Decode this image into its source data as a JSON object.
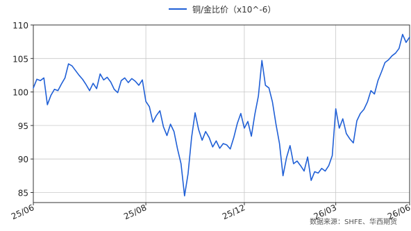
{
  "chart_data": {
    "type": "line",
    "title": "",
    "xlabel": "",
    "ylabel": "",
    "ylim": [
      83.5,
      110
    ],
    "yticks": [
      85,
      90,
      95,
      100,
      105,
      110
    ],
    "xticks": [
      "25/06",
      "25/08",
      "25/12",
      "26/03",
      "26/06"
    ],
    "grid": true,
    "legend_position": "top-center",
    "colors": {
      "line": "#1f5fd6",
      "grid": "#c8c8c8",
      "axis": "#333333"
    },
    "series": [
      {
        "name": "铜/金比价（x10^-6）",
        "points": [
          [
            0,
            100.6
          ],
          [
            1,
            101.9
          ],
          [
            2,
            101.7
          ],
          [
            3,
            102.1
          ],
          [
            4,
            98.1
          ],
          [
            5,
            99.5
          ],
          [
            6,
            100.4
          ],
          [
            7,
            100.2
          ],
          [
            8,
            101.2
          ],
          [
            9,
            102.1
          ],
          [
            10,
            104.2
          ],
          [
            11,
            103.9
          ],
          [
            12,
            103.2
          ],
          [
            13,
            102.5
          ],
          [
            14,
            101.9
          ],
          [
            15,
            101.1
          ],
          [
            16,
            100.2
          ],
          [
            17,
            101.3
          ],
          [
            18,
            100.5
          ],
          [
            19,
            102.7
          ],
          [
            20,
            101.8
          ],
          [
            21,
            102.2
          ],
          [
            22,
            101.5
          ],
          [
            23,
            100.4
          ],
          [
            24,
            99.9
          ],
          [
            25,
            101.7
          ],
          [
            26,
            102.1
          ],
          [
            27,
            101.4
          ],
          [
            28,
            102.0
          ],
          [
            29,
            101.6
          ],
          [
            30,
            101.0
          ],
          [
            31,
            101.8
          ],
          [
            32,
            98.6
          ],
          [
            33,
            97.8
          ],
          [
            34,
            95.5
          ],
          [
            35,
            96.5
          ],
          [
            36,
            97.2
          ],
          [
            37,
            94.8
          ],
          [
            38,
            93.5
          ],
          [
            39,
            95.2
          ],
          [
            40,
            94.1
          ],
          [
            41,
            91.5
          ],
          [
            42,
            89.3
          ],
          [
            43,
            84.5
          ],
          [
            44,
            87.8
          ],
          [
            45,
            93.2
          ],
          [
            46,
            96.9
          ],
          [
            47,
            94.4
          ],
          [
            48,
            92.8
          ],
          [
            49,
            94.1
          ],
          [
            50,
            93.2
          ],
          [
            51,
            91.8
          ],
          [
            52,
            92.7
          ],
          [
            53,
            91.6
          ],
          [
            54,
            92.3
          ],
          [
            55,
            92.1
          ],
          [
            56,
            91.5
          ],
          [
            57,
            93.2
          ],
          [
            58,
            95.3
          ],
          [
            59,
            96.8
          ],
          [
            60,
            94.6
          ],
          [
            61,
            95.6
          ],
          [
            62,
            93.4
          ],
          [
            63,
            96.7
          ],
          [
            64,
            99.4
          ],
          [
            65,
            104.7
          ],
          [
            66,
            101.0
          ],
          [
            67,
            100.6
          ],
          [
            68,
            98.5
          ],
          [
            69,
            95.2
          ],
          [
            70,
            92.3
          ],
          [
            71,
            87.5
          ],
          [
            72,
            90.2
          ],
          [
            73,
            92.0
          ],
          [
            74,
            89.3
          ],
          [
            75,
            89.7
          ],
          [
            76,
            89.0
          ],
          [
            77,
            88.2
          ],
          [
            78,
            90.3
          ],
          [
            79,
            86.8
          ],
          [
            80,
            88.1
          ],
          [
            81,
            87.9
          ],
          [
            82,
            88.6
          ],
          [
            83,
            88.2
          ],
          [
            84,
            89.0
          ],
          [
            85,
            90.5
          ],
          [
            86,
            97.5
          ],
          [
            87,
            94.6
          ],
          [
            88,
            96.0
          ],
          [
            89,
            93.8
          ],
          [
            90,
            93.0
          ],
          [
            91,
            92.4
          ],
          [
            92,
            95.7
          ],
          [
            93,
            96.8
          ],
          [
            94,
            97.4
          ],
          [
            95,
            98.5
          ],
          [
            96,
            100.2
          ],
          [
            97,
            99.7
          ],
          [
            98,
            101.7
          ],
          [
            99,
            103.0
          ],
          [
            100,
            104.4
          ],
          [
            101,
            104.8
          ],
          [
            102,
            105.4
          ],
          [
            103,
            105.8
          ],
          [
            104,
            106.5
          ],
          [
            105,
            108.6
          ],
          [
            106,
            107.4
          ],
          [
            107,
            108.2
          ]
        ]
      }
    ],
    "x_tick_positions": [
      0,
      32,
      60,
      86,
      107
    ]
  },
  "legend": {
    "label": "铜/金比价（x10^-6）"
  },
  "source": {
    "text": "数据来源：SHFE、华西期货"
  }
}
